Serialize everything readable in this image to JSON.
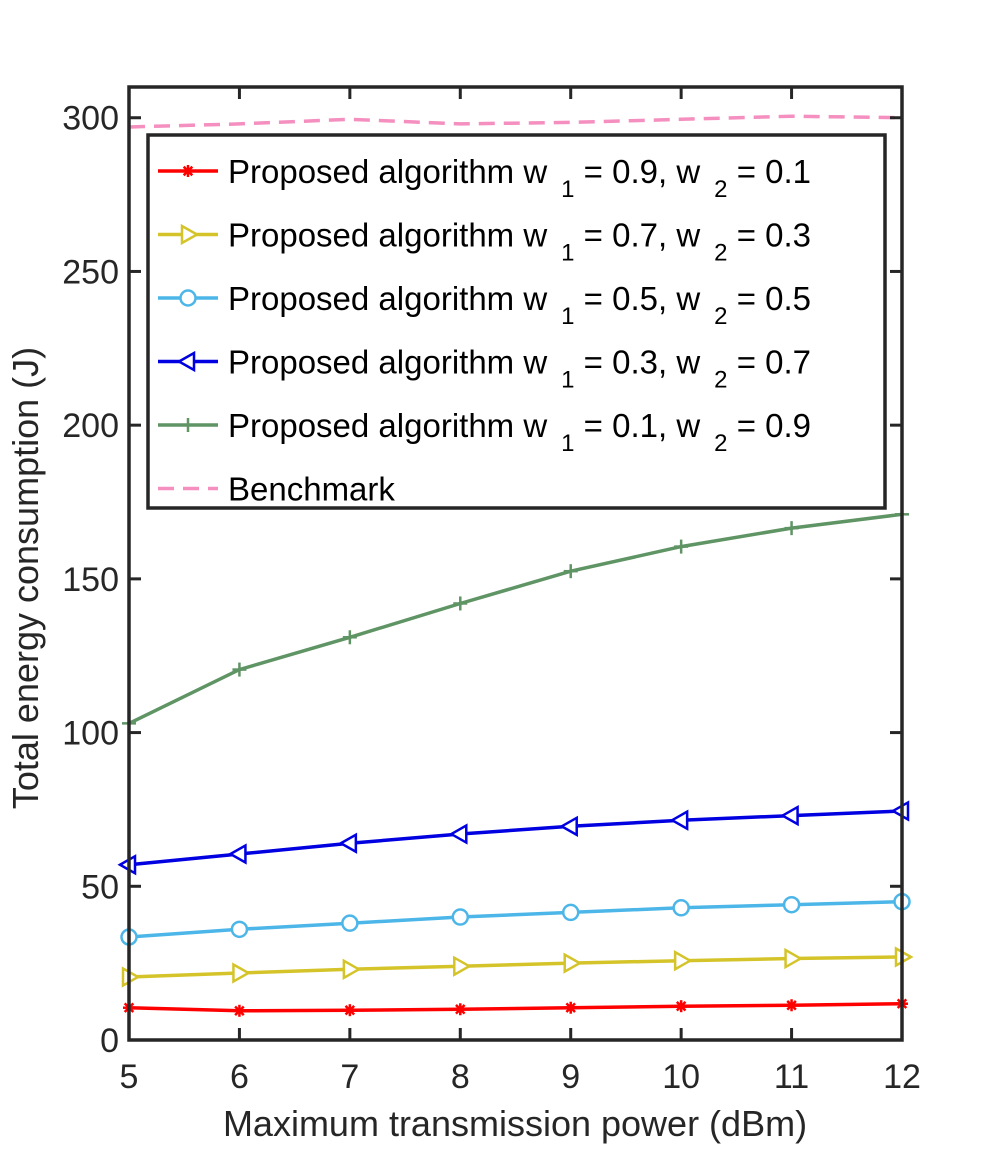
{
  "chart_data": {
    "type": "line",
    "title": "",
    "xlabel": "Maximum transmission power (dBm)",
    "ylabel": "Total energy consumption (J)",
    "x": [
      5,
      6,
      7,
      8,
      9,
      10,
      11,
      12
    ],
    "xlim": [
      5,
      12
    ],
    "ylim": [
      0,
      310
    ],
    "xticks": [
      "5",
      "6",
      "7",
      "8",
      "9",
      "10",
      "11",
      "12"
    ],
    "yticks": [
      "0",
      "50",
      "100",
      "150",
      "200",
      "250",
      "300"
    ],
    "ytick_values": [
      0,
      50,
      100,
      150,
      200,
      250,
      300
    ],
    "grid": false,
    "legend_position": "top-right",
    "series": [
      {
        "name": "Proposed algorithm w 1 = 0.9, w 2 = 0.1",
        "legend": {
          "prefix": "Proposed algorithm w",
          "sub1": "1",
          "mid": " = 0.9, w",
          "sub2": "2",
          "suffix": " = 0.1"
        },
        "color": "#ff0000",
        "marker": "asterisk",
        "dashed": false,
        "values": [
          10.5,
          9.5,
          9.7,
          10.0,
          10.5,
          11.0,
          11.3,
          11.8
        ]
      },
      {
        "name": "Proposed algorithm w 1 = 0.7, w 2 = 0.3",
        "legend": {
          "prefix": "Proposed algorithm w",
          "sub1": "1",
          "mid": " = 0.7, w",
          "sub2": "2",
          "suffix": " = 0.3"
        },
        "color": "#d4c42a",
        "marker": "triangle-right",
        "dashed": false,
        "values": [
          20.5,
          21.8,
          23.0,
          24.0,
          25.0,
          25.8,
          26.5,
          27.0
        ]
      },
      {
        "name": "Proposed algorithm w 1 = 0.5, w 2 = 0.5",
        "legend": {
          "prefix": "Proposed algorithm w",
          "sub1": "1",
          "mid": " = 0.5, w",
          "sub2": "2",
          "suffix": " = 0.5"
        },
        "color": "#4db6e8",
        "marker": "circle",
        "dashed": false,
        "values": [
          33.5,
          36.0,
          38.0,
          40.0,
          41.5,
          43.0,
          44.0,
          45.0
        ]
      },
      {
        "name": "Proposed algorithm w 1 = 0.3, w 2 = 0.7",
        "legend": {
          "prefix": "Proposed algorithm w",
          "sub1": "1",
          "mid": " = 0.3, w",
          "sub2": "2",
          "suffix": " = 0.7"
        },
        "color": "#0000e0",
        "marker": "triangle-left",
        "dashed": false,
        "values": [
          57.0,
          60.5,
          64.0,
          67.0,
          69.5,
          71.5,
          73.0,
          74.5
        ]
      },
      {
        "name": "Proposed algorithm w 1 = 0.1, w 2 = 0.9",
        "legend": {
          "prefix": "Proposed algorithm w",
          "sub1": "1",
          "mid": " = 0.1, w",
          "sub2": "2",
          "suffix": " = 0.9"
        },
        "color": "#5f9464",
        "marker": "plus",
        "dashed": false,
        "values": [
          103.0,
          120.5,
          131.0,
          142.0,
          152.5,
          160.5,
          166.5,
          171.0
        ]
      },
      {
        "name": "Benchmark",
        "legend": {
          "prefix": "Benchmark",
          "sub1": "",
          "mid": "",
          "sub2": "",
          "suffix": ""
        },
        "color": "#f48fbf",
        "marker": "none",
        "dashed": true,
        "values": [
          297.0,
          298.0,
          299.5,
          298.0,
          298.5,
          299.5,
          300.5,
          300.0
        ]
      }
    ]
  }
}
